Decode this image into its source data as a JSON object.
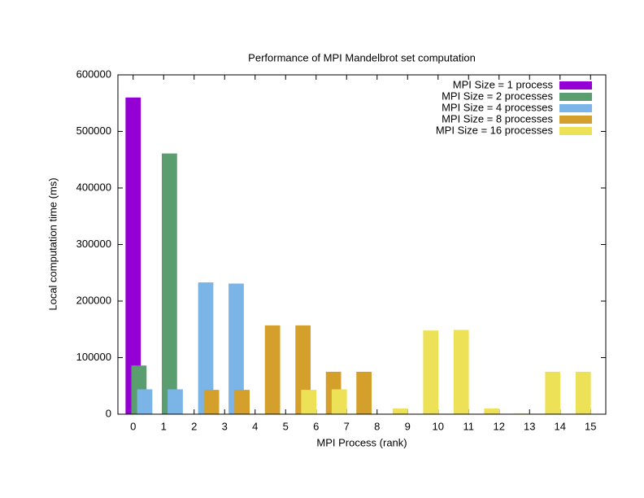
{
  "chart_data": {
    "type": "bar",
    "title": "Performance of MPI Mandelbrot set computation",
    "x_label": "MPI Process (rank)",
    "y_label": "Local computation time (ms)",
    "categories": [
      "0",
      "1",
      "2",
      "3",
      "4",
      "5",
      "6",
      "7",
      "8",
      "9",
      "10",
      "11",
      "12",
      "13",
      "14",
      "15"
    ],
    "series": [
      {
        "name": "MPI Size = 1 process",
        "color": "#9400d3",
        "values": [
          560000,
          null,
          null,
          null,
          null,
          null,
          null,
          null,
          null,
          null,
          null,
          null,
          null,
          null,
          null,
          null
        ]
      },
      {
        "name": "MPI Size = 2 processes",
        "color": "#5a9e70",
        "values": [
          86000,
          461000,
          null,
          null,
          null,
          null,
          null,
          null,
          null,
          null,
          null,
          null,
          null,
          null,
          null,
          null
        ]
      },
      {
        "name": "MPI Size = 4 processes",
        "color": "#7bb5e8",
        "values": [
          44000,
          44000,
          233000,
          231000,
          null,
          null,
          null,
          null,
          null,
          null,
          null,
          null,
          null,
          null,
          null,
          null
        ]
      },
      {
        "name": "MPI Size = 8 processes",
        "color": "#d49f2a",
        "values": [
          null,
          null,
          43000,
          43000,
          157000,
          157000,
          75000,
          75000,
          null,
          null,
          null,
          null,
          null,
          null,
          null,
          null
        ]
      },
      {
        "name": "MPI Size = 16 processes",
        "color": "#ede157",
        "values": [
          null,
          null,
          null,
          null,
          null,
          43000,
          44000,
          null,
          10000,
          148000,
          149000,
          10000,
          1000,
          75000,
          75000,
          null
        ]
      }
    ],
    "ylim": [
      0,
      600000
    ],
    "yticks": [
      0,
      100000,
      200000,
      300000,
      400000,
      500000,
      600000
    ],
    "legend": "top-right"
  }
}
